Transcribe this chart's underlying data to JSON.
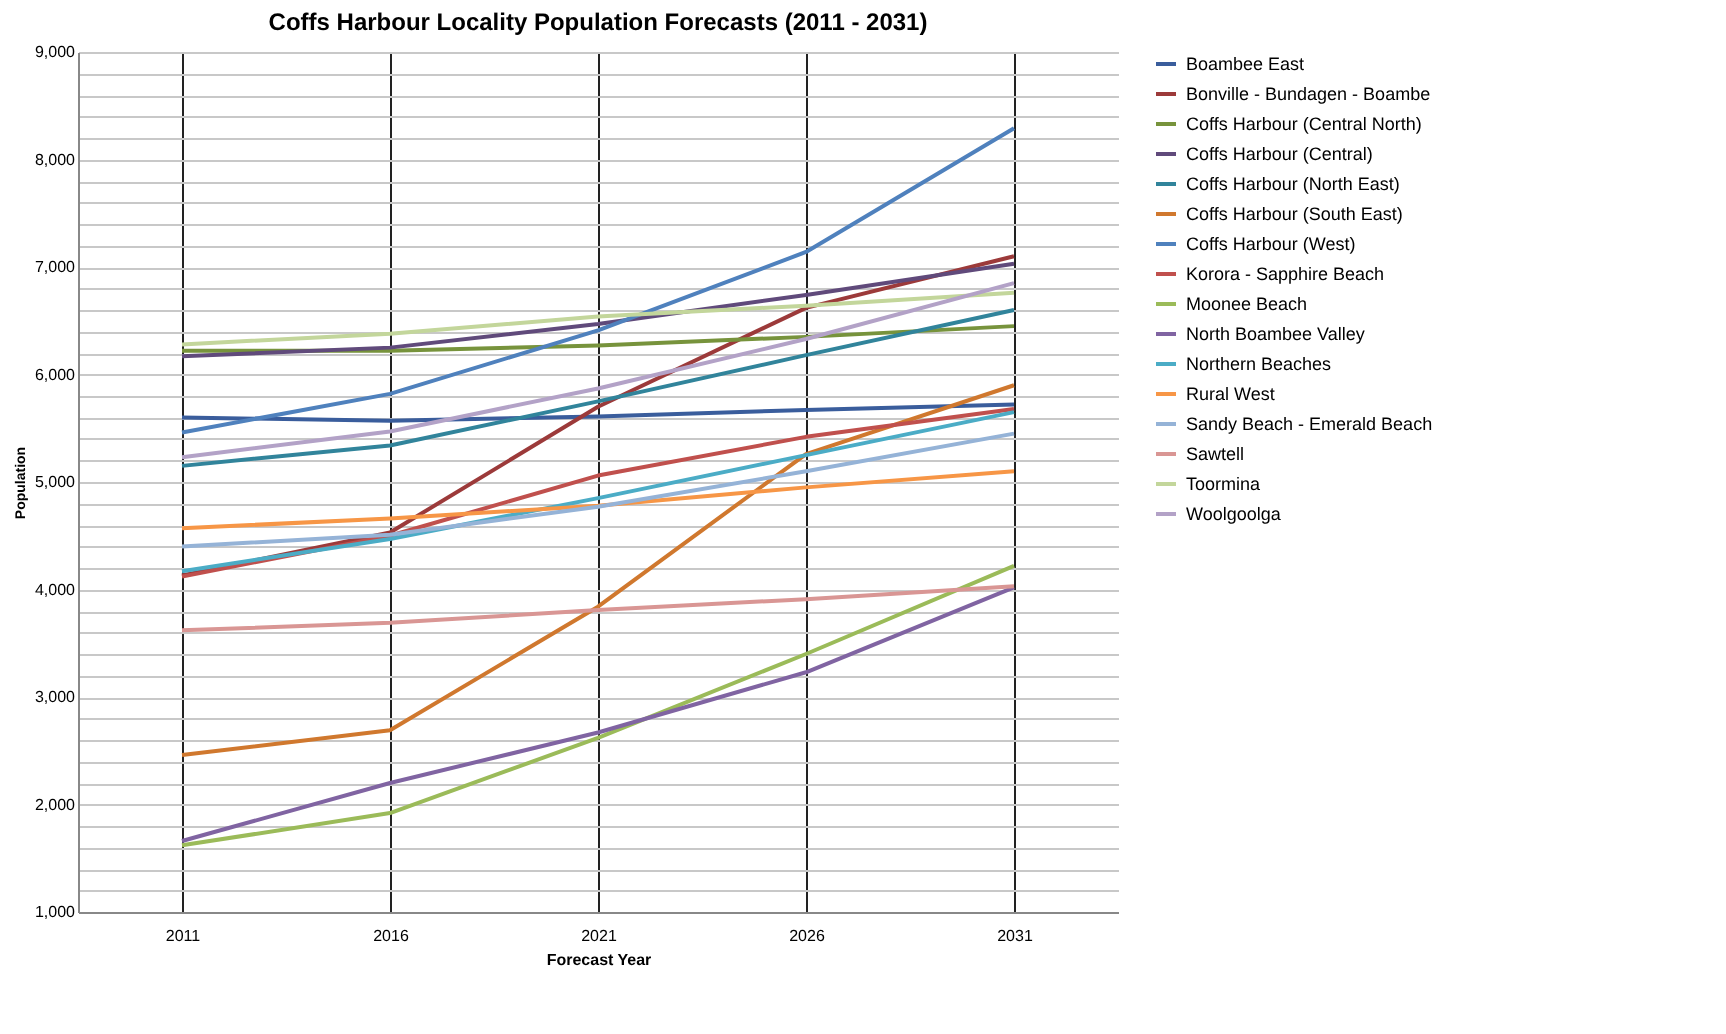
{
  "chart_data": {
    "type": "line",
    "title": "Coffs Harbour  Locality Population Forecasts (2011 - 2031)",
    "xlabel": "Forecast Year",
    "ylabel": "Population",
    "categories": [
      "2011",
      "2016",
      "2021",
      "2026",
      "2031"
    ],
    "ylim": [
      1000,
      9000
    ],
    "yticks": [
      {
        "value": 1000,
        "label": "1,000"
      },
      {
        "value": 1200,
        "label": null
      },
      {
        "value": 1400,
        "label": null
      },
      {
        "value": 1600,
        "label": null
      },
      {
        "value": 1800,
        "label": null
      },
      {
        "value": 2000,
        "label": "2,000"
      },
      {
        "value": 2200,
        "label": null
      },
      {
        "value": 2400,
        "label": null
      },
      {
        "value": 2600,
        "label": null
      },
      {
        "value": 2800,
        "label": null
      },
      {
        "value": 3000,
        "label": "3,000"
      },
      {
        "value": 3200,
        "label": null
      },
      {
        "value": 3400,
        "label": null
      },
      {
        "value": 3600,
        "label": null
      },
      {
        "value": 3800,
        "label": null
      },
      {
        "value": 4000,
        "label": "4,000"
      },
      {
        "value": 4200,
        "label": null
      },
      {
        "value": 4400,
        "label": null
      },
      {
        "value": 4600,
        "label": null
      },
      {
        "value": 4800,
        "label": null
      },
      {
        "value": 5000,
        "label": "5,000"
      },
      {
        "value": 5200,
        "label": null
      },
      {
        "value": 5400,
        "label": null
      },
      {
        "value": 5600,
        "label": null
      },
      {
        "value": 5800,
        "label": null
      },
      {
        "value": 6000,
        "label": "6,000"
      },
      {
        "value": 6200,
        "label": null
      },
      {
        "value": 6400,
        "label": null
      },
      {
        "value": 6600,
        "label": null
      },
      {
        "value": 6800,
        "label": null
      },
      {
        "value": 7000,
        "label": "7,000"
      },
      {
        "value": 7200,
        "label": null
      },
      {
        "value": 7400,
        "label": null
      },
      {
        "value": 7600,
        "label": null
      },
      {
        "value": 7800,
        "label": null
      },
      {
        "value": 8000,
        "label": "8,000"
      },
      {
        "value": 8200,
        "label": null
      },
      {
        "value": 8400,
        "label": null
      },
      {
        "value": 8600,
        "label": null
      },
      {
        "value": 8800,
        "label": null
      },
      {
        "value": 9000,
        "label": "9,000"
      }
    ],
    "grid": true,
    "legend": "right",
    "marker": "none",
    "line_style": "solid",
    "series": [
      {
        "name": "Boambee East",
        "color": "#3a5d9c",
        "values": [
          5600,
          5570,
          5610,
          5670,
          5720
        ]
      },
      {
        "name": "Bonville - Bundagen - Boambe",
        "color": "#9c3a3a",
        "values": [
          4130,
          4530,
          5700,
          6620,
          7100
        ]
      },
      {
        "name": "Coffs Harbour (Central North)",
        "color": "#77933c",
        "values": [
          6220,
          6220,
          6270,
          6350,
          6450
        ]
      },
      {
        "name": "Coffs Harbour (Central)",
        "color": "#604a7b",
        "values": [
          6170,
          6250,
          6470,
          6740,
          7030
        ]
      },
      {
        "name": "Coffs Harbour (North East)",
        "color": "#31849b",
        "values": [
          5150,
          5340,
          5750,
          6180,
          6600
        ]
      },
      {
        "name": "Coffs Harbour (South East)",
        "color": "#d0782e",
        "values": [
          2460,
          2690,
          3840,
          5260,
          5900
        ]
      },
      {
        "name": "Coffs Harbour (West)",
        "color": "#4f81bd",
        "values": [
          5460,
          5820,
          6410,
          7140,
          8290
        ]
      },
      {
        "name": "Korora - Sapphire Beach",
        "color": "#c0504d",
        "values": [
          4120,
          4500,
          5060,
          5420,
          5680
        ]
      },
      {
        "name": "Moonee Beach",
        "color": "#9bbb59",
        "values": [
          1620,
          1920,
          2620,
          3400,
          4220
        ]
      },
      {
        "name": "North Boambee Valley",
        "color": "#8064a2",
        "values": [
          1660,
          2200,
          2670,
          3230,
          4020
        ]
      },
      {
        "name": "Northern Beaches",
        "color": "#4bacc6",
        "values": [
          4170,
          4470,
          4850,
          5250,
          5650
        ]
      },
      {
        "name": "Rural West",
        "color": "#f79646",
        "values": [
          4570,
          4660,
          4780,
          4950,
          5100
        ]
      },
      {
        "name": "Sandy Beach - Emerald Beach",
        "color": "#95b3d7",
        "values": [
          4400,
          4510,
          4770,
          5100,
          5450
        ]
      },
      {
        "name": "Sawtell",
        "color": "#d99694",
        "values": [
          3620,
          3690,
          3810,
          3910,
          4030
        ]
      },
      {
        "name": "Toormina",
        "color": "#c3d69b",
        "values": [
          6280,
          6380,
          6540,
          6640,
          6760
        ]
      },
      {
        "name": "Woolgoolga",
        "color": "#b3a2c7",
        "values": [
          5230,
          5470,
          5870,
          6330,
          6850
        ]
      }
    ]
  }
}
